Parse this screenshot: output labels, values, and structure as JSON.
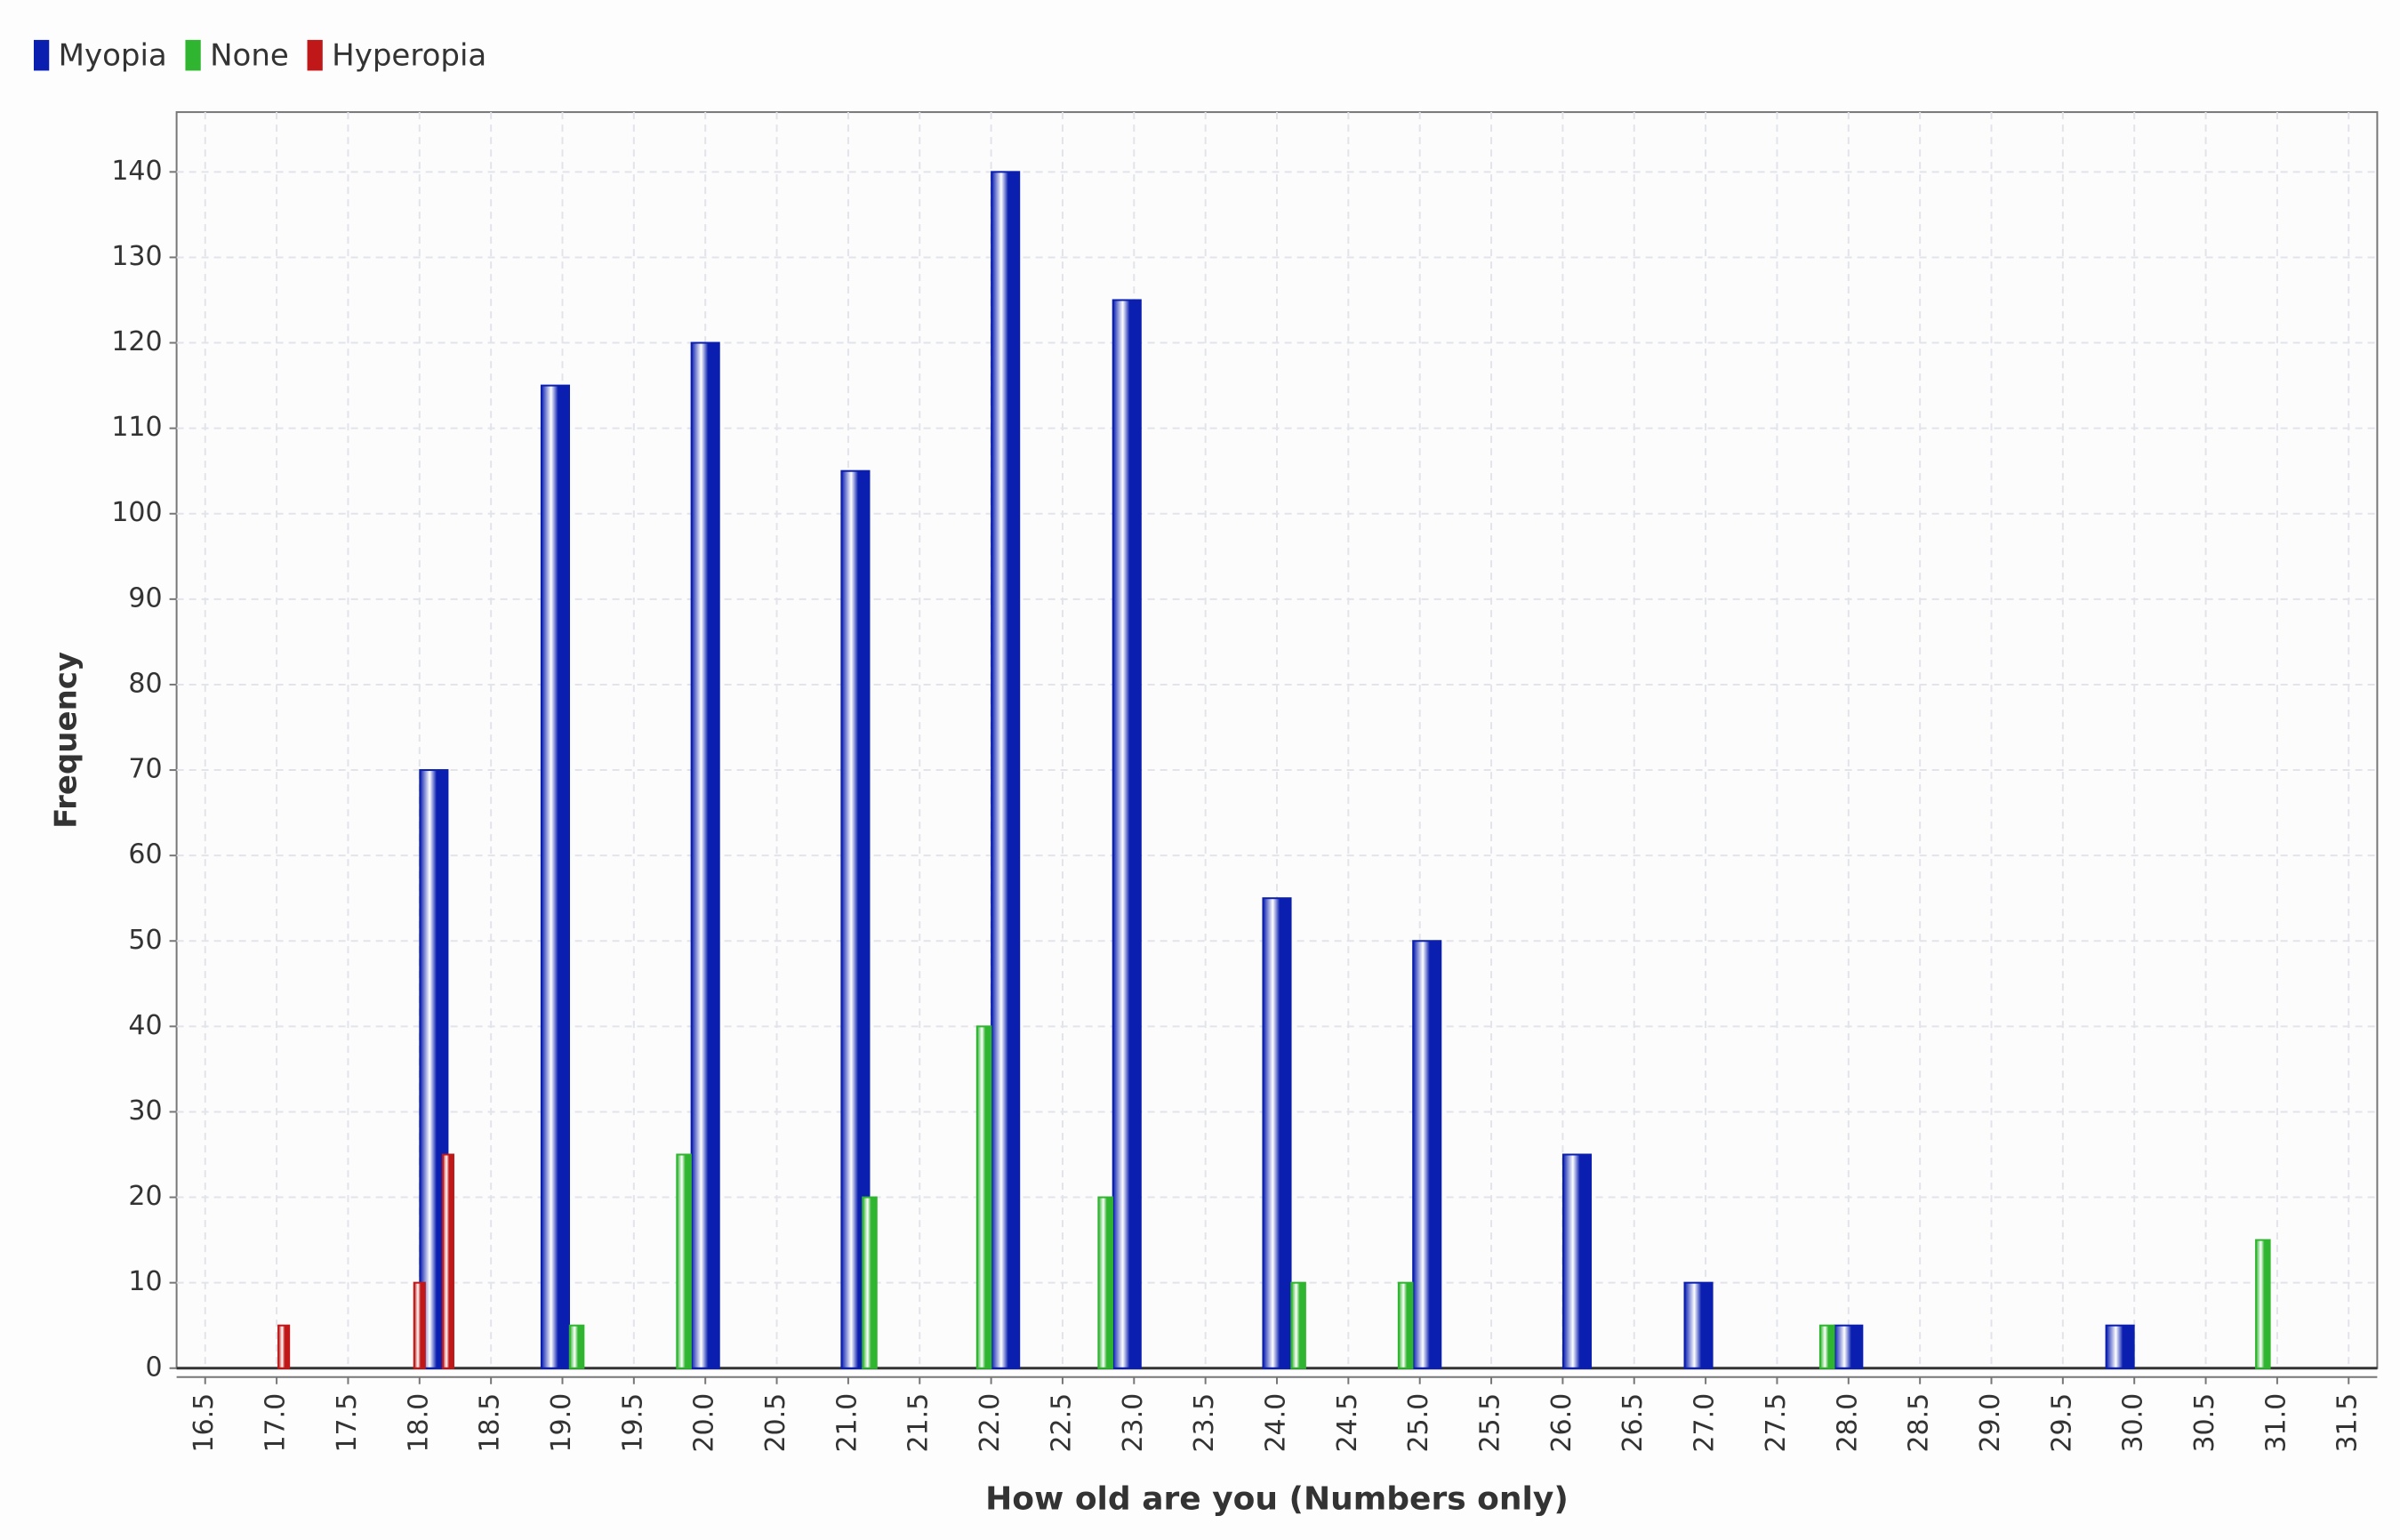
{
  "chart_data": {
    "type": "bar",
    "x_label": "How old are you (Numbers only)",
    "y_label": "Frequency",
    "xlim": [
      16.3,
      31.7
    ],
    "ylim": [
      0,
      147
    ],
    "xticks": [
      16.5,
      {
        "value": 17,
        "label": "17.0"
      },
      17.5,
      {
        "value": 18,
        "label": "18.0"
      },
      18.5,
      {
        "value": 19,
        "label": "19.0"
      },
      19.5,
      {
        "value": 20,
        "label": "20.0"
      },
      20.5,
      {
        "value": 21,
        "label": "21.0"
      },
      21.5,
      {
        "value": 22,
        "label": "22.0"
      },
      22.5,
      {
        "value": 23,
        "label": "23.0"
      },
      23.5,
      {
        "value": 24,
        "label": "24.0"
      },
      24.5,
      {
        "value": 25,
        "label": "25.0"
      },
      25.5,
      {
        "value": 26,
        "label": "26.0"
      },
      26.5,
      {
        "value": 27,
        "label": "27.0"
      },
      27.5,
      {
        "value": 28,
        "label": "28.0"
      },
      28.5,
      {
        "value": 29,
        "label": "29.0"
      },
      29.5,
      {
        "value": 30,
        "label": "30.0"
      },
      30.5,
      {
        "value": 31,
        "label": "31.0"
      },
      31.5
    ],
    "yticks": [
      0,
      10,
      20,
      30,
      40,
      50,
      60,
      70,
      80,
      90,
      100,
      110,
      120,
      130,
      140
    ],
    "grid": true,
    "legend": "top-left",
    "series": [
      {
        "name": "Myopia",
        "color": "#0a1fb0",
        "x": [
          18.1,
          18.95,
          20.0,
          21.05,
          22.1,
          22.95,
          24.0,
          25.05,
          26.1,
          26.95,
          28.0,
          29.9
        ],
        "values": [
          70,
          115,
          120,
          105,
          140,
          125,
          55,
          50,
          25,
          10,
          5,
          5
        ]
      },
      {
        "name": "None",
        "color": "#2fb52f",
        "x": [
          19.1,
          19.85,
          21.15,
          21.95,
          22.8,
          24.15,
          24.9,
          27.85,
          30.9
        ],
        "values": [
          5,
          25,
          20,
          40,
          20,
          10,
          10,
          5,
          15
        ]
      },
      {
        "name": "Hyperopia",
        "color": "#c01818",
        "x": [
          17.05,
          18.0,
          18.2
        ],
        "values": [
          5,
          10,
          25
        ]
      }
    ]
  }
}
